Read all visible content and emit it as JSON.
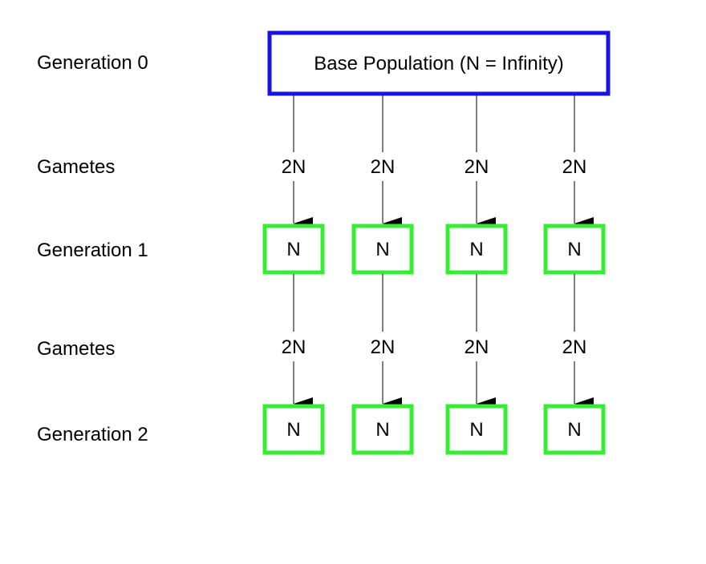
{
  "row_labels": {
    "generation_0": "Generation 0",
    "gametes_1": "Gametes",
    "generation_1": "Generation 1",
    "gametes_2": "Gametes",
    "generation_2": "Generation 2"
  },
  "base_population": {
    "label": "Base Population (N = Infinity)",
    "border_color": "#1414e6"
  },
  "subpopulation_border_color": "#33ee33",
  "columns": [
    {
      "gametes_1": "2N",
      "generation_1": "N",
      "gametes_2": "2N",
      "generation_2": "N"
    },
    {
      "gametes_1": "2N",
      "generation_1": "N",
      "gametes_2": "2N",
      "generation_2": "N"
    },
    {
      "gametes_1": "2N",
      "generation_1": "N",
      "gametes_2": "2N",
      "generation_2": "N"
    },
    {
      "gametes_1": "2N",
      "generation_1": "N",
      "gametes_2": "2N",
      "generation_2": "N"
    }
  ]
}
